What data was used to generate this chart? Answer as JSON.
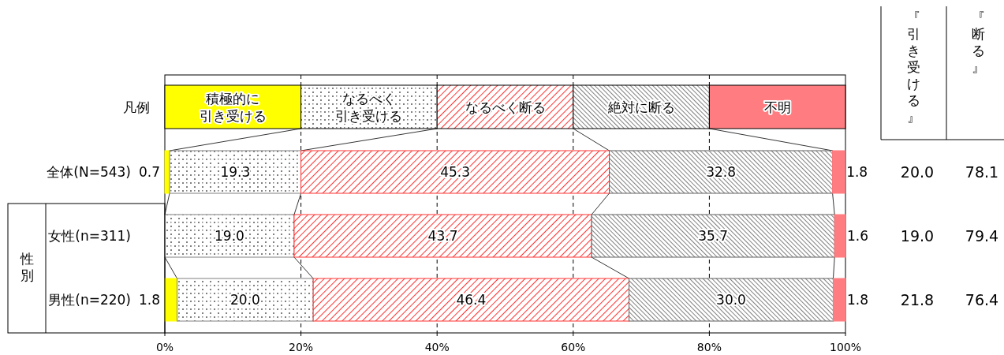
{
  "chart_data": {
    "type": "bar",
    "orientation": "horizontal",
    "stacked": true,
    "grid": "x",
    "legend": "top",
    "legend_title": "凡例",
    "categories": [
      "全体(N=543)",
      "女性(n=311)",
      "男性(n=220)"
    ],
    "series": [
      {
        "name": "積極的に引き受ける",
        "color": "#ffff00",
        "values": [
          0.7,
          null,
          1.8
        ],
        "value_labels": [
          "0.7",
          null,
          "1.8"
        ]
      },
      {
        "name": "なるべく引き受ける",
        "color": "#808080",
        "values": [
          19.3,
          19.0,
          20.0
        ],
        "value_labels": [
          "19.3",
          "19.0",
          "20.0"
        ]
      },
      {
        "name": "なるべく断る",
        "color": "#ff3333",
        "values": [
          45.3,
          43.7,
          46.4
        ],
        "value_labels": [
          "45.3",
          "43.7",
          "46.4"
        ]
      },
      {
        "name": "絶対に断る",
        "color": "#606060",
        "values": [
          32.8,
          35.7,
          30.0
        ],
        "value_labels": [
          "32.8",
          "35.7",
          "30.0"
        ]
      },
      {
        "name": "不明",
        "color": "#ff7c80",
        "values": [
          1.8,
          1.6,
          1.8
        ],
        "value_labels": [
          "1.8",
          "1.6",
          "1.8"
        ]
      }
    ],
    "xlim": [
      0,
      100
    ],
    "xticks": [
      {
        "value": 0,
        "label": "0%"
      },
      {
        "value": 20,
        "label": "20%"
      },
      {
        "value": 40,
        "label": "40%"
      },
      {
        "value": 60,
        "label": "60%"
      },
      {
        "value": 80,
        "label": "80%"
      },
      {
        "value": 100,
        "label": "100%"
      }
    ],
    "annotations": [
      "性別",
      "『引き受ける』",
      "『断る』",
      "20.0",
      "78.1",
      "19.0",
      "79.4",
      "21.8",
      "76.4"
    ]
  }
}
